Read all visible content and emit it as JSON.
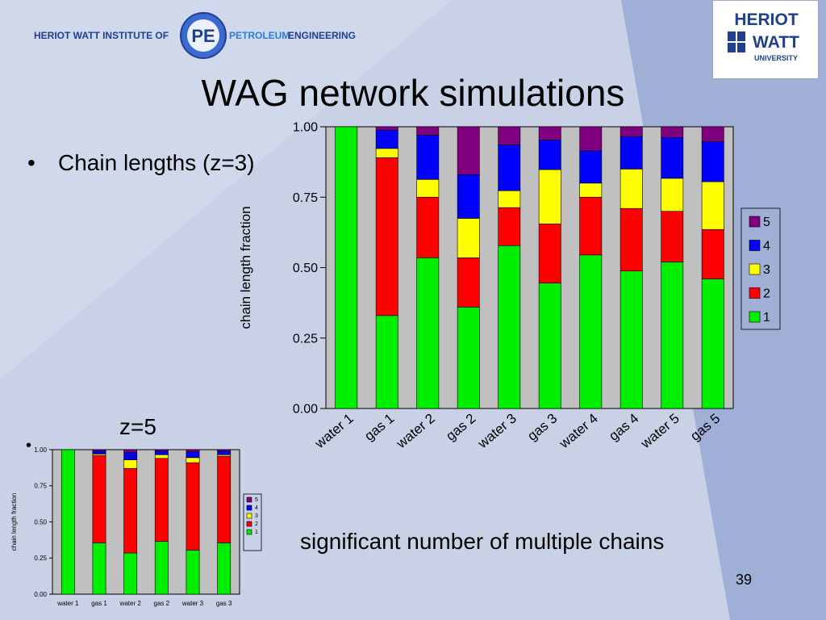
{
  "header": {
    "institute_left": "HERIOT WATT INSTITUTE OF",
    "institute_right_a": "PETROLEUM",
    "institute_right_b": "ENGINEERING",
    "logo_letters": "PE",
    "univ_line1": "HERIOT",
    "univ_line2": "WATT",
    "univ_line3": "UNIVERSITY"
  },
  "slide": {
    "title": "WAG network simulations",
    "bullet_char": "•",
    "bullet_text": "Chain lengths (z=3)",
    "z5_label": "z=5",
    "caption": "significant number of multiple chains",
    "page_number": "39"
  },
  "colors": {
    "background": "#c9d1e6",
    "panel": "#c0c0c0",
    "s1": "#00ee00",
    "s2": "#ff0000",
    "s3": "#ffff00",
    "s4": "#0000ff",
    "s5": "#800080",
    "logo_blue": "#1f3f8f"
  },
  "chart_data": [
    {
      "type": "bar",
      "stacked": true,
      "ylabel": "chain length fraction",
      "ylim": [
        0,
        1
      ],
      "yticks": [
        "0.00",
        "0.25",
        "0.50",
        "0.75",
        "1.00"
      ],
      "categories": [
        "water 1",
        "gas 1",
        "water 2",
        "gas 2",
        "water 3",
        "gas 3",
        "water 4",
        "gas 4",
        "water 5",
        "gas 5"
      ],
      "series": [
        {
          "name": "1",
          "values": [
            1.0,
            0.33,
            0.535,
            0.36,
            0.578,
            0.445,
            0.545,
            0.488,
            0.52,
            0.46
          ]
        },
        {
          "name": "2",
          "values": [
            0.0,
            0.56,
            0.215,
            0.175,
            0.135,
            0.21,
            0.205,
            0.222,
            0.18,
            0.175
          ]
        },
        {
          "name": "3",
          "values": [
            0.0,
            0.033,
            0.063,
            0.14,
            0.06,
            0.193,
            0.05,
            0.14,
            0.117,
            0.17
          ]
        },
        {
          "name": "4",
          "values": [
            0.0,
            0.065,
            0.157,
            0.155,
            0.163,
            0.105,
            0.115,
            0.115,
            0.145,
            0.142
          ]
        },
        {
          "name": "5",
          "values": [
            0.0,
            0.012,
            0.03,
            0.17,
            0.064,
            0.047,
            0.085,
            0.035,
            0.038,
            0.053
          ]
        }
      ],
      "legend": [
        "5",
        "4",
        "3",
        "2",
        "1"
      ],
      "legend_position": "right",
      "grid": false
    },
    {
      "type": "bar",
      "stacked": true,
      "ylabel": "chain length fraction",
      "ylim": [
        0,
        1
      ],
      "yticks": [
        "0.00",
        "0.25",
        "0.50",
        "0.75",
        "1.00"
      ],
      "categories": [
        "water 1",
        "gas 1",
        "water 2",
        "gas 2",
        "water 3",
        "gas 3"
      ],
      "series": [
        {
          "name": "1",
          "values": [
            1.0,
            0.355,
            0.285,
            0.365,
            0.305,
            0.355
          ]
        },
        {
          "name": "2",
          "values": [
            0.0,
            0.605,
            0.585,
            0.575,
            0.605,
            0.6
          ]
        },
        {
          "name": "3",
          "values": [
            0.0,
            0.01,
            0.06,
            0.025,
            0.035,
            0.01
          ]
        },
        {
          "name": "4",
          "values": [
            0.0,
            0.02,
            0.05,
            0.025,
            0.04,
            0.025
          ]
        },
        {
          "name": "5",
          "values": [
            0.0,
            0.01,
            0.02,
            0.01,
            0.015,
            0.01
          ]
        }
      ],
      "legend": [
        "5",
        "4",
        "3",
        "2",
        "1"
      ],
      "legend_position": "right",
      "grid": false
    }
  ]
}
